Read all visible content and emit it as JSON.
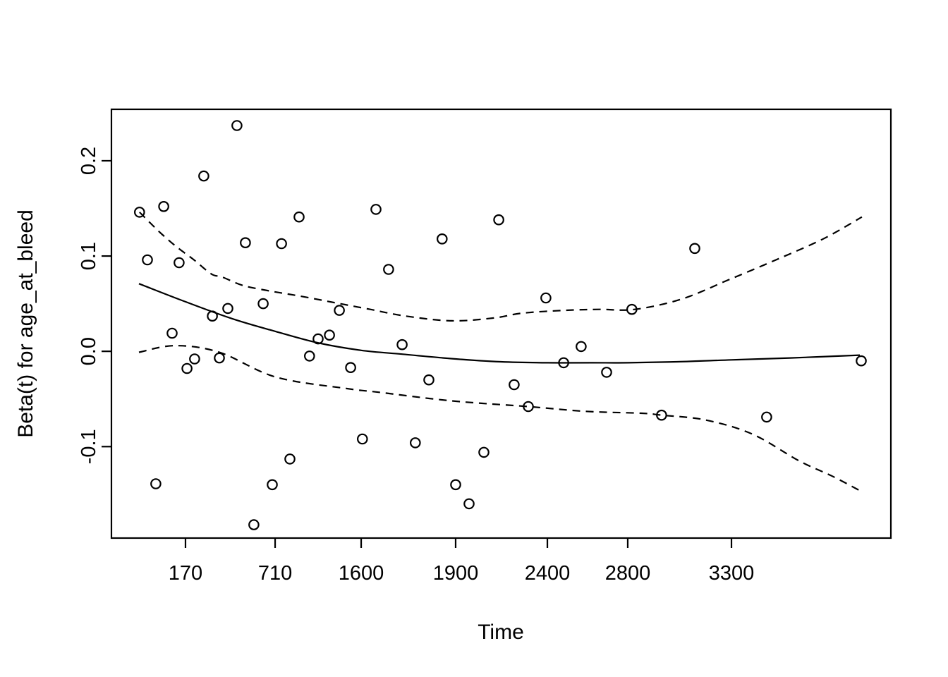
{
  "figure": {
    "background": "#ffffff",
    "foreground": "#000000"
  },
  "chart_data": {
    "type": "scatter",
    "subtype": "schoenfeld-residuals-with-smooth-and-confidence-bands",
    "title": "",
    "xlabel": "Time",
    "ylabel": "Beta(t) for age_at_bleed",
    "grid": false,
    "legend": null,
    "point_marker": "open-circle",
    "x_axis": {
      "scale": "nonlinear-event-time",
      "tick_values": [
        170,
        710,
        1600,
        1900,
        2400,
        2800,
        3300
      ],
      "tick_labels": [
        "170",
        "710",
        "1600",
        "1900",
        "2400",
        "2800",
        "3300"
      ],
      "anchors_time": [
        10,
        170,
        710,
        1600,
        1900,
        2400,
        2800,
        3300,
        4070
      ],
      "anchors_frac": [
        0.0353,
        0.095,
        0.21,
        0.3204,
        0.4416,
        0.5593,
        0.6624,
        0.7955,
        1.0
      ]
    },
    "y_axis": {
      "tick_values": [
        -0.1,
        0.0,
        0.1,
        0.2
      ],
      "tick_labels": [
        "-0.1",
        "0.0",
        "0.1",
        "0.2"
      ],
      "ylim": [
        -0.196,
        0.254
      ]
    },
    "points": [
      [
        480,
        0.237
      ],
      [
        280,
        0.184
      ],
      [
        12,
        0.146
      ],
      [
        95,
        0.152
      ],
      [
        958,
        0.141
      ],
      [
        1647,
        0.149
      ],
      [
        531,
        0.114
      ],
      [
        776,
        0.113
      ],
      [
        39,
        0.096
      ],
      [
        148,
        0.093
      ],
      [
        332,
        0.037
      ],
      [
        425,
        0.045
      ],
      [
        638,
        0.05
      ],
      [
        1374,
        0.043
      ],
      [
        2135,
        0.138
      ],
      [
        1857,
        0.118
      ],
      [
        1687,
        0.086
      ],
      [
        2392,
        0.056
      ],
      [
        2820,
        0.044
      ],
      [
        3123,
        0.108
      ],
      [
        124,
        0.019
      ],
      [
        225,
        -0.008
      ],
      [
        179,
        -0.018
      ],
      [
        374,
        -0.007
      ],
      [
        1155,
        0.013
      ],
      [
        1272,
        0.017
      ],
      [
        1066,
        -0.005
      ],
      [
        1491,
        -0.017
      ],
      [
        1730,
        0.007
      ],
      [
        1815,
        -0.03
      ],
      [
        2219,
        -0.035
      ],
      [
        2296,
        -0.058
      ],
      [
        2481,
        -0.012
      ],
      [
        2568,
        0.005
      ],
      [
        2695,
        -0.022
      ],
      [
        2963,
        -0.067
      ],
      [
        3470,
        -0.069
      ],
      [
        3927,
        -0.01
      ],
      [
        1772,
        -0.096
      ],
      [
        2054,
        -0.106
      ],
      [
        1604,
        -0.092
      ],
      [
        863,
        -0.113
      ],
      [
        68,
        -0.139
      ],
      [
        693,
        -0.14
      ],
      [
        1900,
        -0.14
      ],
      [
        1973,
        -0.16
      ],
      [
        582,
        -0.182
      ]
    ],
    "smooth_line": [
      [
        10,
        0.071
      ],
      [
        170,
        0.052
      ],
      [
        455,
        0.034
      ],
      [
        710,
        0.021
      ],
      [
        1148,
        0.009
      ],
      [
        1600,
        0.001
      ],
      [
        1730,
        -0.003
      ],
      [
        1900,
        -0.008
      ],
      [
        2146,
        -0.011
      ],
      [
        2400,
        -0.012
      ],
      [
        2625,
        -0.012
      ],
      [
        2800,
        -0.012
      ],
      [
        3038,
        -0.011
      ],
      [
        3300,
        -0.009
      ],
      [
        3583,
        -0.007
      ],
      [
        3920,
        -0.004
      ]
    ],
    "upper_band": [
      [
        12,
        0.146
      ],
      [
        78,
        0.126
      ],
      [
        138,
        0.11
      ],
      [
        221,
        0.096
      ],
      [
        327,
        0.081
      ],
      [
        391,
        0.078
      ],
      [
        519,
        0.069
      ],
      [
        689,
        0.063
      ],
      [
        965,
        0.058
      ],
      [
        1330,
        0.051
      ],
      [
        1629,
        0.044
      ],
      [
        1741,
        0.037
      ],
      [
        1887,
        0.032
      ],
      [
        2108,
        0.035
      ],
      [
        2262,
        0.04
      ],
      [
        2484,
        0.043
      ],
      [
        2660,
        0.044
      ],
      [
        2834,
        0.044
      ],
      [
        3062,
        0.055
      ],
      [
        3286,
        0.075
      ],
      [
        3515,
        0.096
      ],
      [
        3743,
        0.118
      ],
      [
        3930,
        0.141
      ]
    ],
    "lower_band": [
      [
        10,
        -0.001
      ],
      [
        134,
        0.006
      ],
      [
        374,
        -0.001
      ],
      [
        717,
        -0.027
      ],
      [
        1447,
        -0.039
      ],
      [
        1658,
        -0.043
      ],
      [
        1887,
        -0.052
      ],
      [
        2296,
        -0.058
      ],
      [
        2590,
        -0.063
      ],
      [
        2868,
        -0.065
      ],
      [
        2963,
        -0.067
      ],
      [
        3174,
        -0.072
      ],
      [
        3402,
        -0.087
      ],
      [
        3627,
        -0.115
      ],
      [
        3787,
        -0.131
      ],
      [
        3927,
        -0.147
      ]
    ]
  }
}
